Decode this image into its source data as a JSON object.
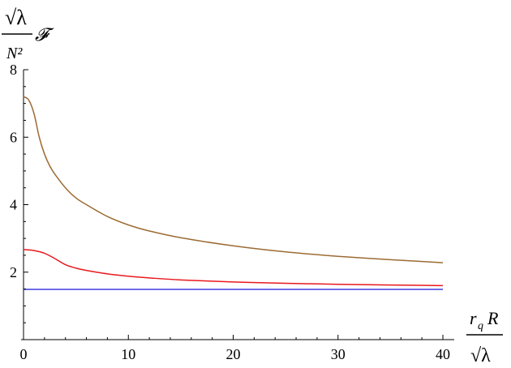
{
  "chart_data": {
    "type": "line",
    "title": "",
    "ylabel": {
      "numerator": "√λ",
      "denominator": "N²",
      "symbol": "𝓕"
    },
    "xlabel": {
      "numerator_symbol": "r",
      "numerator_subscript": "q",
      "numerator_tail": "R",
      "denominator": "√λ"
    },
    "xlim": [
      0,
      40
    ],
    "ylim": [
      0,
      8
    ],
    "x_ticks": [
      "0",
      "10",
      "20",
      "30",
      "40"
    ],
    "y_ticks": [
      "2",
      "4",
      "6",
      "8"
    ],
    "grid": false,
    "legend": "none",
    "series": [
      {
        "color": "#9c6b33",
        "x": [
          0,
          0.5,
          1,
          1.5,
          2,
          2.5,
          3,
          4,
          5,
          6,
          8,
          10,
          12,
          15,
          20,
          25,
          30,
          35,
          40
        ],
        "values": [
          7.2,
          7.1,
          6.7,
          6.0,
          5.5,
          5.15,
          4.9,
          4.5,
          4.2,
          4.0,
          3.65,
          3.4,
          3.22,
          3.02,
          2.78,
          2.6,
          2.47,
          2.37,
          2.28
        ]
      },
      {
        "color": "#e8191d",
        "x": [
          0,
          1,
          2,
          3,
          4,
          5,
          6,
          8,
          10,
          12,
          15,
          20,
          25,
          30,
          35,
          40
        ],
        "values": [
          2.67,
          2.64,
          2.56,
          2.4,
          2.22,
          2.12,
          2.05,
          1.95,
          1.88,
          1.83,
          1.77,
          1.71,
          1.67,
          1.64,
          1.62,
          1.6
        ]
      },
      {
        "color": "#3d3de0",
        "x": [
          0,
          40
        ],
        "values": [
          1.49,
          1.49
        ]
      }
    ]
  }
}
